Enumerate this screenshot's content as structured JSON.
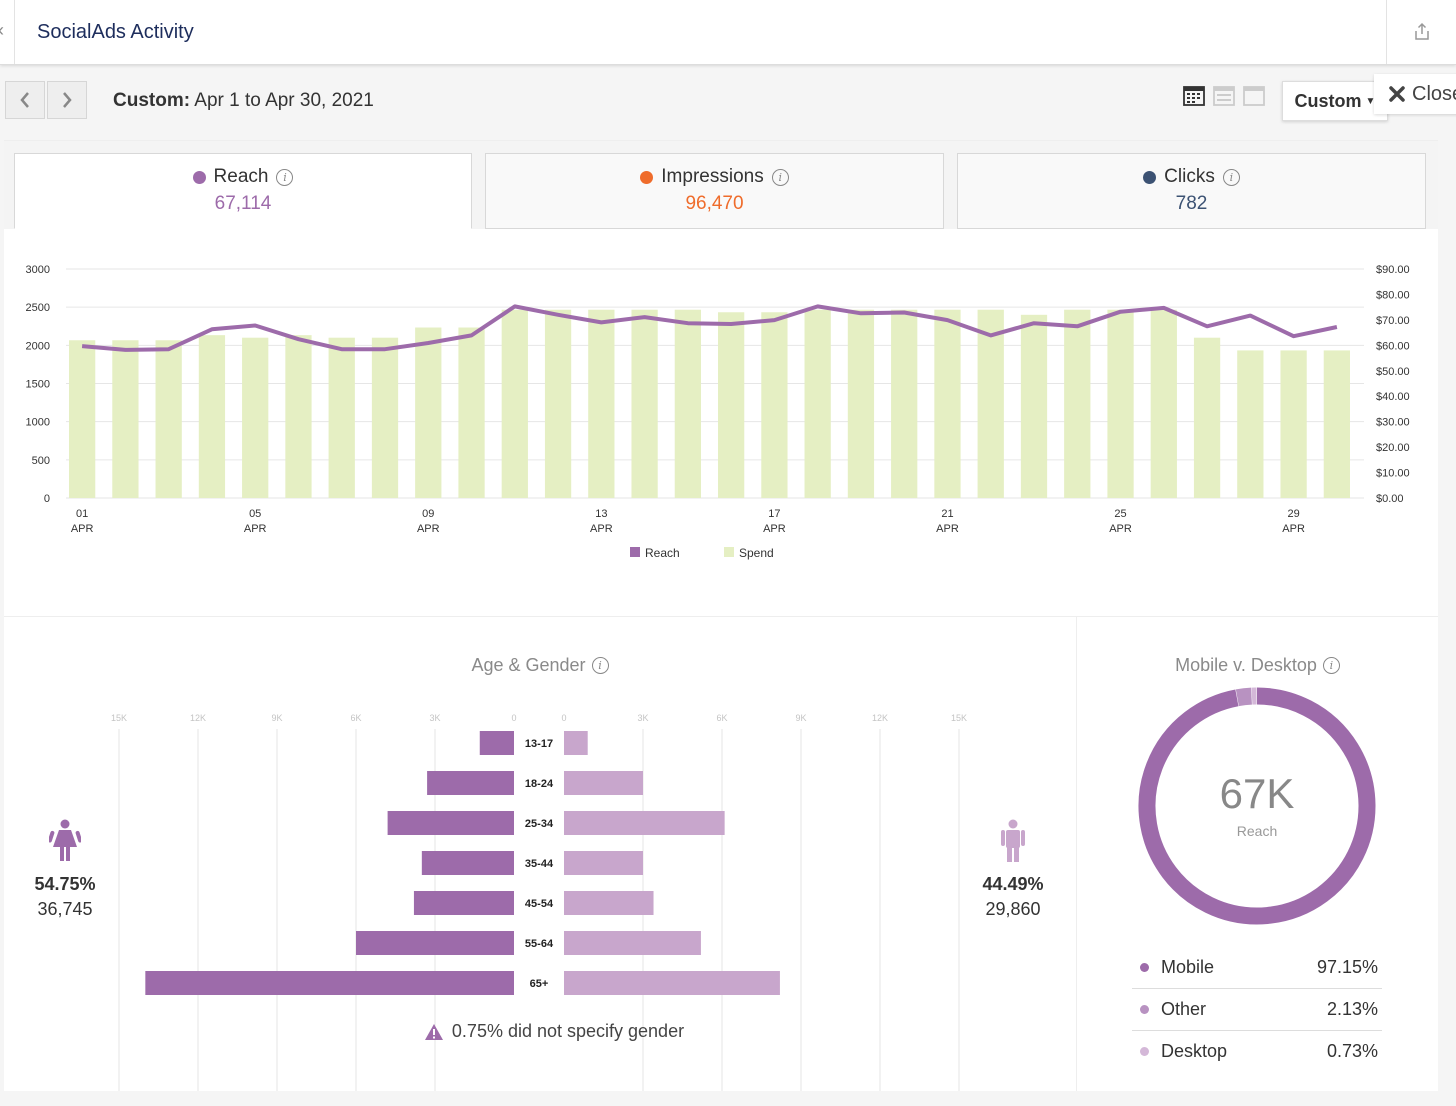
{
  "header": {
    "title": "SocialAds Activity",
    "share_icon": "share-icon"
  },
  "toolbar": {
    "date_prefix": "Custom:",
    "date_range": "Apr 1 to Apr 30, 2021",
    "range_button": "Custom",
    "close_label": "Close"
  },
  "tabs": [
    {
      "label": "Reach",
      "value": "67,114",
      "color": "#9d6baa"
    },
    {
      "label": "Impressions",
      "value": "96,470",
      "color": "#ef6c2b"
    },
    {
      "label": "Clicks",
      "value": "782",
      "color": "#3c5273"
    }
  ],
  "chart_data": [
    {
      "type": "bar",
      "x": [
        "01",
        "02",
        "03",
        "04",
        "05",
        "06",
        "07",
        "08",
        "09",
        "10",
        "11",
        "12",
        "13",
        "14",
        "15",
        "16",
        "17",
        "18",
        "19",
        "20",
        "21",
        "22",
        "23",
        "24",
        "25",
        "26",
        "27",
        "28",
        "29",
        "30"
      ],
      "x_tick_labels": [
        {
          "day": "01",
          "month": "APR"
        },
        {
          "day": "05",
          "month": "APR"
        },
        {
          "day": "09",
          "month": "APR"
        },
        {
          "day": "13",
          "month": "APR"
        },
        {
          "day": "17",
          "month": "APR"
        },
        {
          "day": "21",
          "month": "APR"
        },
        {
          "day": "25",
          "month": "APR"
        },
        {
          "day": "29",
          "month": "APR"
        }
      ],
      "y_left_ticks": [
        "0",
        "500",
        "1000",
        "1500",
        "2000",
        "2500",
        "3000"
      ],
      "y_right_ticks": [
        "$0.00",
        "$10.00",
        "$20.00",
        "$30.00",
        "$40.00",
        "$50.00",
        "$60.00",
        "$70.00",
        "$80.00",
        "$90.00"
      ],
      "ylim_left": [
        0,
        3000
      ],
      "ylim_right": [
        0,
        90
      ],
      "series": [
        {
          "name": "Reach",
          "kind": "line",
          "axis": "left",
          "color": "#9d6baa",
          "values": [
            1990,
            1940,
            1950,
            2210,
            2260,
            2080,
            1950,
            1950,
            2030,
            2130,
            2510,
            2400,
            2300,
            2370,
            2290,
            2280,
            2330,
            2510,
            2420,
            2430,
            2330,
            2130,
            2290,
            2250,
            2440,
            2490,
            2250,
            2390,
            2120,
            2240
          ]
        },
        {
          "name": "Spend",
          "kind": "bar",
          "axis": "right",
          "color": "#e5efc3",
          "values": [
            62,
            62,
            62,
            64,
            63,
            64,
            63,
            63,
            67,
            67,
            74,
            74,
            74,
            74,
            74,
            73,
            73,
            74,
            74,
            74,
            74,
            74,
            72,
            74,
            74,
            74,
            63,
            58,
            58,
            58
          ]
        }
      ],
      "legend_position": "bottom-center",
      "grid": true
    },
    {
      "type": "bar",
      "title": "Age & Gender",
      "categories": [
        "13-17",
        "18-24",
        "25-34",
        "35-44",
        "45-54",
        "55-64",
        "65+"
      ],
      "x_ticks": [
        "15K",
        "12K",
        "9K",
        "6K",
        "3K",
        "0"
      ],
      "xlim": [
        0,
        15000
      ],
      "series": [
        {
          "name": "Female",
          "color": "#9d6baa",
          "values": [
            1300,
            3300,
            4800,
            3500,
            3800,
            6000,
            14000
          ]
        },
        {
          "name": "Male",
          "color": "#c8a6cc",
          "values": [
            900,
            3000,
            6100,
            3000,
            3400,
            5200,
            8200
          ]
        }
      ]
    },
    {
      "type": "pie",
      "title": "Mobile v. Desktop",
      "center_value": "67K",
      "center_label": "Reach",
      "slices": [
        {
          "name": "Mobile",
          "display": "97.15%",
          "value": 97.15,
          "color": "#9d6baa"
        },
        {
          "name": "Other",
          "display": "2.13%",
          "value": 2.13,
          "color": "#b892c1"
        },
        {
          "name": "Desktop",
          "display": "0.73%",
          "value": 0.73,
          "color": "#d4b8d8"
        }
      ]
    }
  ],
  "gender": {
    "female": {
      "percent": "54.75%",
      "count": "36,745",
      "icon": "female-icon"
    },
    "male": {
      "percent": "44.49%",
      "count": "29,860",
      "icon": "male-icon"
    },
    "note": "0.75% did not specify gender"
  }
}
